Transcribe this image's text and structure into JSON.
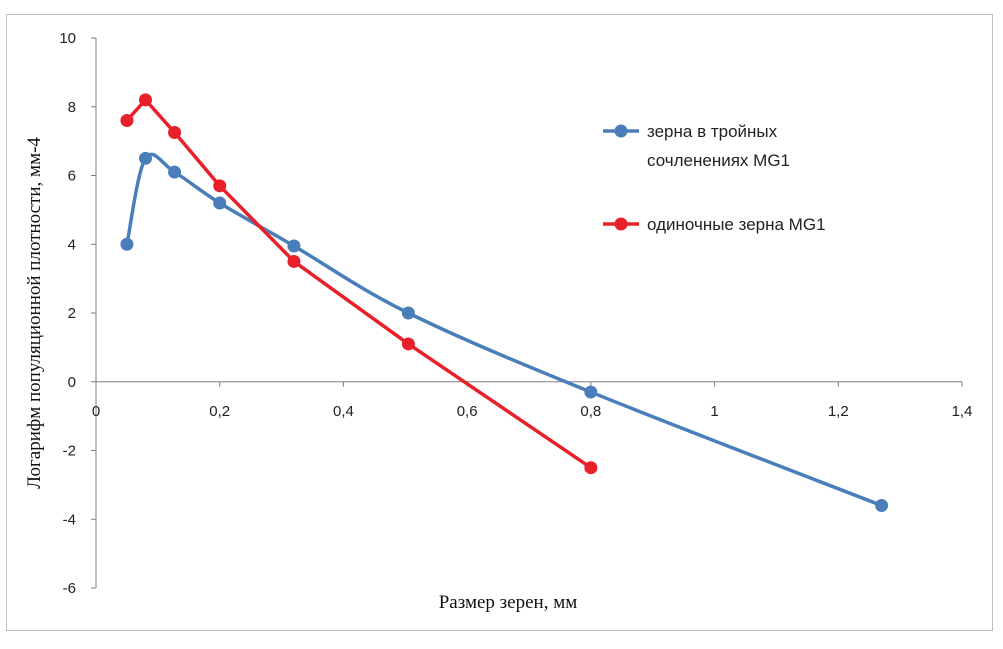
{
  "chart_data": {
    "type": "line",
    "title": "",
    "xlabel": "Размер зерен, мм",
    "ylabel": "Логарифм популяционной плотности, мм-4",
    "xlim": [
      0,
      1.4
    ],
    "ylim": [
      -6,
      10
    ],
    "x_ticks": [
      "0",
      "0,2",
      "0,4",
      "0,6",
      "0,8",
      "1",
      "1,2",
      "1,4"
    ],
    "y_ticks": [
      "10",
      "8",
      "6",
      "4",
      "2",
      "0",
      "-2",
      "-4",
      "-6"
    ],
    "grid": false,
    "legend_position": "right",
    "series": [
      {
        "name": "зерна в тройных сочленениях MG1",
        "name_lines": [
          "зерна в тройных",
          "сочленениях MG1"
        ],
        "color": "#4a7ebb",
        "smooth": true,
        "points": [
          [
            0.05,
            4.0
          ],
          [
            0.08,
            6.5
          ],
          [
            0.127,
            6.1
          ],
          [
            0.2,
            5.2
          ],
          [
            0.32,
            3.95
          ],
          [
            0.505,
            2.0
          ],
          [
            0.8,
            -0.3
          ],
          [
            1.27,
            -3.6
          ]
        ]
      },
      {
        "name": "одиночные зерна MG1",
        "name_lines": [
          "одиночные зерна MG1"
        ],
        "color": "#e8202a",
        "smooth": false,
        "points": [
          [
            0.05,
            7.6
          ],
          [
            0.08,
            8.2
          ],
          [
            0.127,
            7.25
          ],
          [
            0.2,
            5.7
          ],
          [
            0.32,
            3.5
          ],
          [
            0.505,
            1.1
          ],
          [
            0.8,
            -2.5
          ]
        ]
      }
    ]
  }
}
